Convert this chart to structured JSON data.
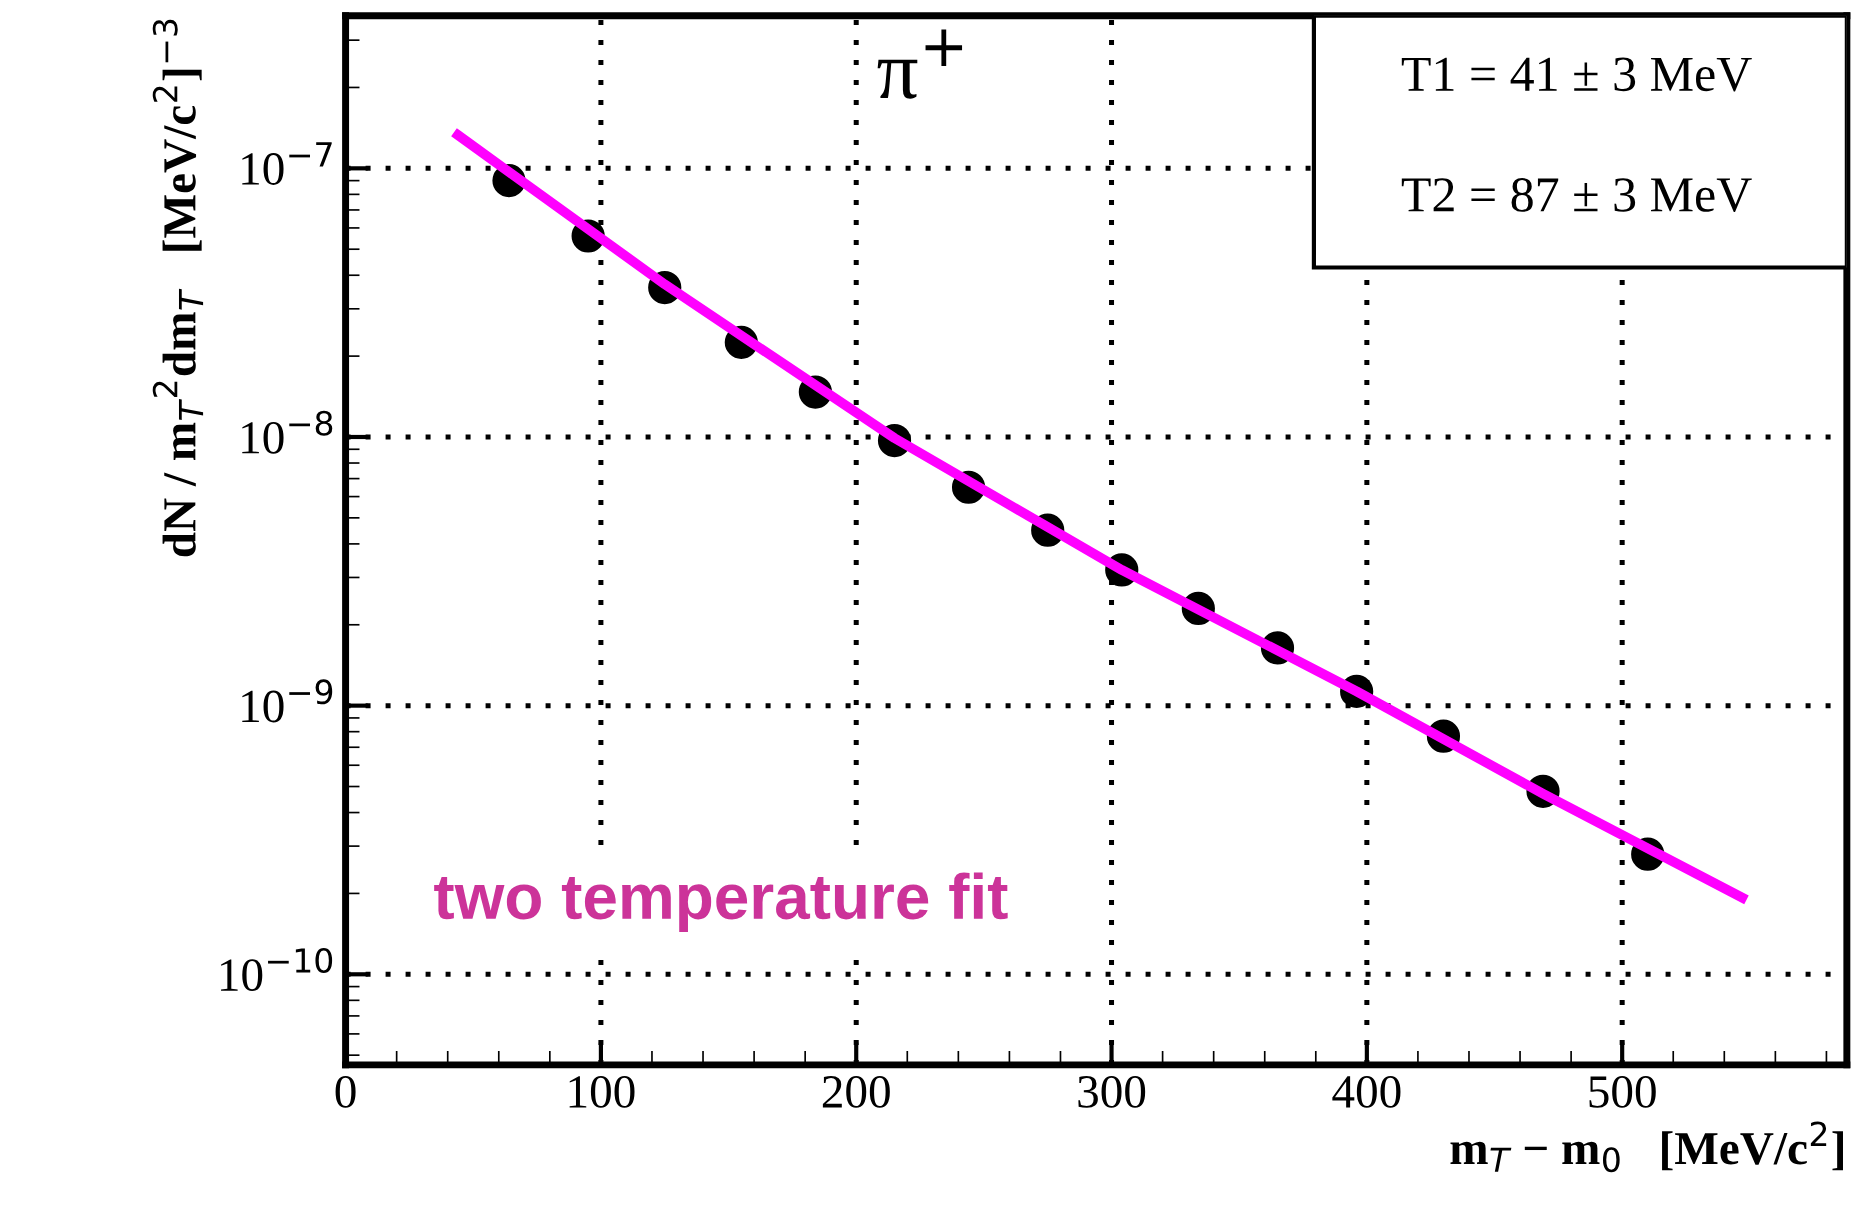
{
  "chart_data": {
    "type": "scatter",
    "xlabel": "m$_{T}$ − m$_{0}$   [MeV/c$^{2}$]",
    "ylabel": "dN / m$_{T}$$^{2}$dm$_{T}$   [MeV/c$^{2}$]$^{−3}$",
    "annotations": [
      "π$^{+}$",
      "T1 = 41 ± 3 MeV",
      "T2 = 87 ± 3 MeV",
      "two temperature fit"
    ],
    "log": "y",
    "grid": true,
    "legend": false,
    "xlim": [
      0,
      588
    ],
    "ylim": [
      4.6e-11,
      3.7e-07
    ],
    "xticks": [
      0,
      100,
      200,
      300,
      400,
      500
    ],
    "yticks": [
      {
        "value": 1e-10,
        "label": "10$^{−10}$"
      },
      {
        "value": 1e-09,
        "label": "10$^{−9}$"
      },
      {
        "value": 1e-08,
        "label": "10$^{−8}$"
      },
      {
        "value": 1e-07,
        "label": "10$^{−7}$"
      }
    ],
    "series": [
      {
        "type": "line",
        "marker": "none",
        "color": "#ff00ff",
        "x": [
          44,
          125,
          215,
          304,
          396,
          469,
          547
        ],
        "values": [
          1.33e-07,
          3.7e-08,
          9.9e-09,
          3.2e-09,
          1.13e-09,
          4.7e-10,
          1.93e-10
        ]
      },
      {
        "marker": "circle",
        "color": "#000000",
        "x": [
          64,
          95,
          125,
          155,
          184,
          215,
          244,
          275,
          304,
          334,
          365,
          396,
          430,
          469,
          510
        ],
        "values": [
          9e-08,
          5.6e-08,
          3.6e-08,
          2.25e-08,
          1.47e-08,
          9.7e-09,
          6.5e-09,
          4.5e-09,
          3.2e-09,
          2.3e-09,
          1.64e-09,
          1.13e-09,
          7.7e-10,
          4.8e-10,
          2.8e-10
        ]
      }
    ]
  }
}
